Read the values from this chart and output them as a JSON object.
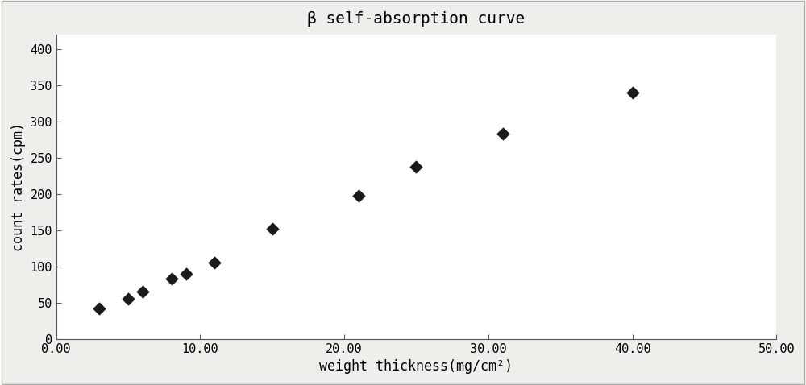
{
  "x": [
    3,
    5,
    6,
    8,
    9,
    11,
    15,
    21,
    25,
    31,
    40
  ],
  "y": [
    42,
    55,
    65,
    83,
    90,
    105,
    152,
    197,
    237,
    283,
    340
  ],
  "title": "β self-absorption curve",
  "xlabel": "weight thickness（mg/cm²）",
  "ylabel": "count rates（cpm）",
  "xlim": [
    0,
    50
  ],
  "ylim": [
    0,
    420
  ],
  "xticks": [
    0.0,
    10.0,
    20.0,
    30.0,
    40.0,
    50.0
  ],
  "yticks": [
    0,
    50,
    100,
    150,
    200,
    250,
    300,
    350,
    400
  ],
  "marker": "D",
  "marker_color": "#1a1a1a",
  "marker_size": 55,
  "background_color": "#ffffff",
  "fig_background_color": "#f0eeea",
  "title_fontsize": 14,
  "label_fontsize": 12,
  "tick_fontsize": 11
}
